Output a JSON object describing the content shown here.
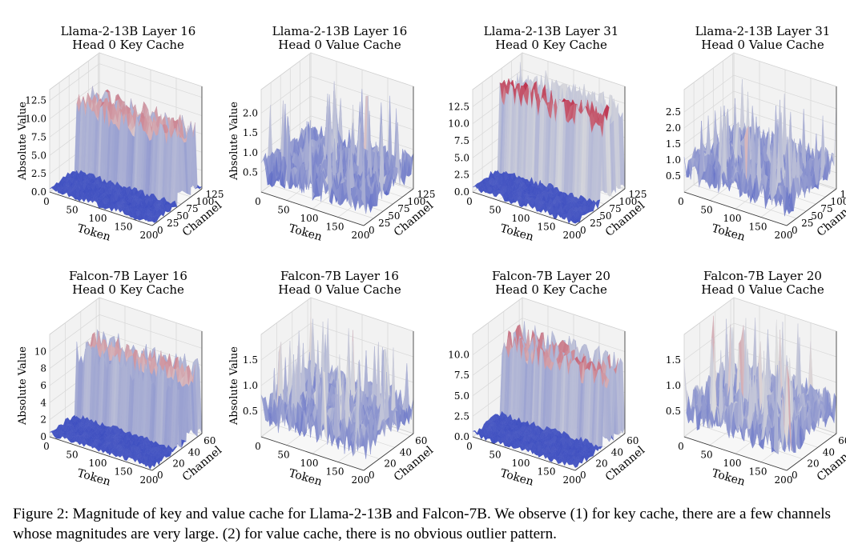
{
  "caption": "Figure 2: Magnitude of key and value cache for Llama-2-13B and Falcon-7B. We observe (1) for key cache, there are a few channels whose magnitudes are very large. (2) for value cache, there is no obvious outlier pattern.",
  "colors": {
    "low": "#3b4cc0",
    "mid": "#dddddd",
    "high": "#b40426"
  },
  "chart_data": [
    {
      "type": "surface",
      "title": [
        "Llama-2-13B Layer 16",
        "Head 0 Key Cache"
      ],
      "xlabel": "Token",
      "ylabel": "Channel",
      "zlabel": "Absolute Value",
      "xticks": [
        0,
        50,
        100,
        150,
        200
      ],
      "yticks": [
        0,
        25,
        50,
        75,
        100,
        125
      ],
      "zticks": [
        0.0,
        2.5,
        5.0,
        7.5,
        10.0,
        12.5
      ],
      "zlim": [
        0,
        14
      ],
      "xrange": [
        0,
        200
      ],
      "yrange": [
        0,
        128
      ],
      "pattern": "key",
      "outlier_level": 10.5
    },
    {
      "type": "surface",
      "title": [
        "Llama-2-13B Layer 16",
        "Head 0 Value Cache"
      ],
      "xlabel": "Token",
      "ylabel": "Channel",
      "zlabel": "Absolute Value",
      "xticks": [
        0,
        50,
        100,
        150,
        200
      ],
      "yticks": [
        0,
        25,
        50,
        75,
        100,
        125
      ],
      "zticks": [
        0.5,
        1.0,
        1.5,
        2.0
      ],
      "zlim": [
        0,
        2.6
      ],
      "xrange": [
        0,
        200
      ],
      "yrange": [
        0,
        128
      ],
      "pattern": "value",
      "outlier_level": 1.4
    },
    {
      "type": "surface",
      "title": [
        "Llama-2-13B Layer 31",
        "Head 0 Key Cache"
      ],
      "xlabel": "Token",
      "ylabel": "Channel",
      "zlabel": "",
      "xticks": [
        0,
        50,
        100,
        150,
        200
      ],
      "yticks": [
        0,
        25,
        50,
        75,
        100,
        125
      ],
      "zticks": [
        0.0,
        2.5,
        5.0,
        7.5,
        10.0,
        12.5
      ],
      "zlim": [
        0,
        15
      ],
      "xrange": [
        0,
        200
      ],
      "yrange": [
        0,
        128
      ],
      "pattern": "key",
      "outlier_level": 14
    },
    {
      "type": "surface",
      "title": [
        "Llama-2-13B Layer 31",
        "Head 0 Value Cache"
      ],
      "xlabel": "Token",
      "ylabel": "Channel",
      "zlabel": "",
      "xticks": [
        0,
        50,
        100,
        150,
        200
      ],
      "yticks": [
        0,
        25,
        50,
        75,
        100,
        125
      ],
      "zticks": [
        0.5,
        1.0,
        1.5,
        2.0,
        2.5
      ],
      "zlim": [
        0,
        3.2
      ],
      "xrange": [
        0,
        200
      ],
      "yrange": [
        0,
        128
      ],
      "pattern": "value",
      "outlier_level": 1.8
    },
    {
      "type": "surface",
      "title": [
        "Falcon-7B Layer 16",
        "Head 0 Key Cache"
      ],
      "xlabel": "Token",
      "ylabel": "Channel",
      "zlabel": "Absolute Value",
      "xticks": [
        0,
        50,
        100,
        150,
        200
      ],
      "yticks": [
        0,
        20,
        40,
        60
      ],
      "zticks": [
        0,
        2,
        4,
        6,
        8,
        10
      ],
      "zlim": [
        0,
        12
      ],
      "xrange": [
        0,
        200
      ],
      "yrange": [
        0,
        64
      ],
      "pattern": "key",
      "outlier_level": 9
    },
    {
      "type": "surface",
      "title": [
        "Falcon-7B Layer 16",
        "Head 0 Value Cache"
      ],
      "xlabel": "Token",
      "ylabel": "Channel",
      "zlabel": "Absolute Value",
      "xticks": [
        0,
        50,
        100,
        150,
        200
      ],
      "yticks": [
        0,
        20,
        40,
        60
      ],
      "zticks": [
        0.5,
        1.0,
        1.5
      ],
      "zlim": [
        0,
        2.0
      ],
      "xrange": [
        0,
        200
      ],
      "yrange": [
        0,
        64
      ],
      "pattern": "value",
      "outlier_level": 1.2
    },
    {
      "type": "surface",
      "title": [
        "Falcon-7B Layer 20",
        "Head 0 Key Cache"
      ],
      "xlabel": "Token",
      "ylabel": "Channel",
      "zlabel": "",
      "xticks": [
        0,
        50,
        100,
        150,
        200
      ],
      "yticks": [
        0,
        20,
        40,
        60
      ],
      "zticks": [
        0.0,
        2.5,
        5.0,
        7.5,
        10.0
      ],
      "zlim": [
        0,
        12.5
      ],
      "xrange": [
        0,
        200
      ],
      "yrange": [
        0,
        64
      ],
      "pattern": "key",
      "outlier_level": 10
    },
    {
      "type": "surface",
      "title": [
        "Falcon-7B Layer 20",
        "Head 0 Value Cache"
      ],
      "xlabel": "Token",
      "ylabel": "Channel",
      "zlabel": "",
      "xticks": [
        0,
        50,
        100,
        150,
        200
      ],
      "yticks": [
        0,
        20,
        40,
        60
      ],
      "zticks": [
        0.5,
        1.0,
        1.5
      ],
      "zlim": [
        0,
        2.0
      ],
      "xrange": [
        0,
        200
      ],
      "yrange": [
        0,
        64
      ],
      "pattern": "value",
      "outlier_level": 1.3
    }
  ]
}
